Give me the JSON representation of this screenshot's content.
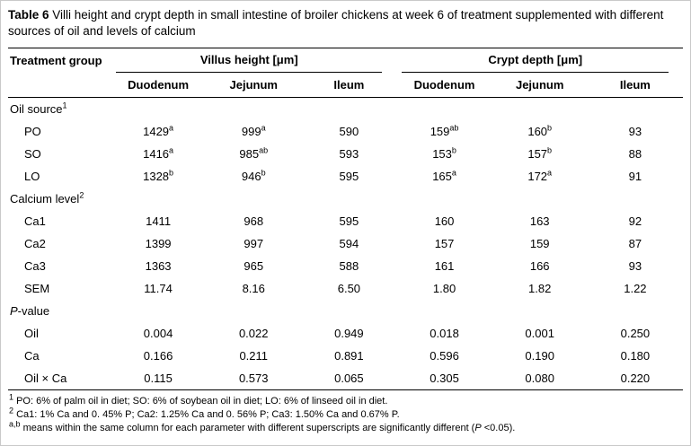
{
  "title": {
    "segments": [
      {
        "text": "Table 6 ",
        "bold": true
      },
      {
        "text": "Villi height and crypt depth in small intestine of broiler chickens at week 6 of treatment supplemented with different sources of oil and levels of calcium"
      }
    ]
  },
  "table": {
    "col1_header": "Treatment group",
    "groups": [
      {
        "label": "Villus height [μm]",
        "cols": [
          "Duodenum",
          "Jejunum",
          "Ileum"
        ]
      },
      {
        "label": "Crypt depth [μm]",
        "cols": [
          "Duodenum",
          "Jejunum",
          "Ileum"
        ]
      }
    ],
    "rows": [
      {
        "type": "section",
        "label": [
          {
            "text": "Oil source"
          }
        ],
        "sup": "1"
      },
      {
        "type": "data",
        "label": [
          {
            "text": "PO"
          }
        ],
        "values": [
          {
            "v": "1429",
            "s": "a"
          },
          {
            "v": "999",
            "s": "a"
          },
          {
            "v": "590"
          },
          {
            "v": "159",
            "s": "ab"
          },
          {
            "v": "160",
            "s": "b"
          },
          {
            "v": "93"
          }
        ]
      },
      {
        "type": "data",
        "label": [
          {
            "text": "SO"
          }
        ],
        "values": [
          {
            "v": "1416",
            "s": "a"
          },
          {
            "v": "985",
            "s": "ab"
          },
          {
            "v": "593"
          },
          {
            "v": "153",
            "s": "b"
          },
          {
            "v": "157",
            "s": "b"
          },
          {
            "v": "88"
          }
        ]
      },
      {
        "type": "data",
        "label": [
          {
            "text": "LO"
          }
        ],
        "values": [
          {
            "v": "1328",
            "s": "b"
          },
          {
            "v": "946",
            "s": "b"
          },
          {
            "v": "595"
          },
          {
            "v": "165",
            "s": "a"
          },
          {
            "v": "172",
            "s": "a"
          },
          {
            "v": "91"
          }
        ]
      },
      {
        "type": "section",
        "label": [
          {
            "text": "Calcium level"
          }
        ],
        "sup": "2"
      },
      {
        "type": "data",
        "label": [
          {
            "text": "Ca1"
          }
        ],
        "values": [
          {
            "v": "1411"
          },
          {
            "v": "968"
          },
          {
            "v": "595"
          },
          {
            "v": "160"
          },
          {
            "v": "163"
          },
          {
            "v": "92"
          }
        ]
      },
      {
        "type": "data",
        "label": [
          {
            "text": "Ca2"
          }
        ],
        "values": [
          {
            "v": "1399"
          },
          {
            "v": "997"
          },
          {
            "v": "594"
          },
          {
            "v": "157"
          },
          {
            "v": "159"
          },
          {
            "v": "87"
          }
        ]
      },
      {
        "type": "data",
        "label": [
          {
            "text": "Ca3"
          }
        ],
        "values": [
          {
            "v": "1363"
          },
          {
            "v": "965"
          },
          {
            "v": "588"
          },
          {
            "v": "161"
          },
          {
            "v": "166"
          },
          {
            "v": "93"
          }
        ]
      },
      {
        "type": "data",
        "label": [
          {
            "text": "SEM"
          }
        ],
        "values": [
          {
            "v": "11.74"
          },
          {
            "v": "8.16"
          },
          {
            "v": "6.50"
          },
          {
            "v": "1.80"
          },
          {
            "v": "1.82"
          },
          {
            "v": "1.22"
          }
        ]
      },
      {
        "type": "section",
        "label": [
          {
            "text": "P",
            "italic": true
          },
          {
            "text": "-value"
          }
        ]
      },
      {
        "type": "data",
        "label": [
          {
            "text": "Oil"
          }
        ],
        "values": [
          {
            "v": "0.004"
          },
          {
            "v": "0.022"
          },
          {
            "v": "0.949"
          },
          {
            "v": "0.018"
          },
          {
            "v": "0.001"
          },
          {
            "v": "0.250"
          }
        ]
      },
      {
        "type": "data",
        "label": [
          {
            "text": "Ca"
          }
        ],
        "values": [
          {
            "v": "0.166"
          },
          {
            "v": "0.211"
          },
          {
            "v": "0.891"
          },
          {
            "v": "0.596"
          },
          {
            "v": "0.190"
          },
          {
            "v": "0.180"
          }
        ]
      },
      {
        "type": "data",
        "label": [
          {
            "text": "Oil × Ca"
          }
        ],
        "values": [
          {
            "v": "0.115"
          },
          {
            "v": "0.573"
          },
          {
            "v": "0.065"
          },
          {
            "v": "0.305"
          },
          {
            "v": "0.080"
          },
          {
            "v": "0.220"
          }
        ]
      }
    ]
  },
  "footnotes": [
    [
      {
        "text": "1",
        "sup": true
      },
      {
        "text": " PO: 6% of palm oil in diet; SO: 6% of soybean oil in diet; LO: 6% of linseed oil in diet."
      }
    ],
    [
      {
        "text": "2",
        "sup": true
      },
      {
        "text": " Ca1: 1% Ca and 0. 45% P; Ca2: 1.25% Ca and 0. 56% P; Ca3: 1.50% Ca and 0.67% P."
      }
    ],
    [
      {
        "text": "a,b",
        "sup": true
      },
      {
        "text": " means within the same column for each parameter with different superscripts are significantly different ("
      },
      {
        "text": "P",
        "italic": true
      },
      {
        "text": " <0.05)."
      }
    ]
  ]
}
